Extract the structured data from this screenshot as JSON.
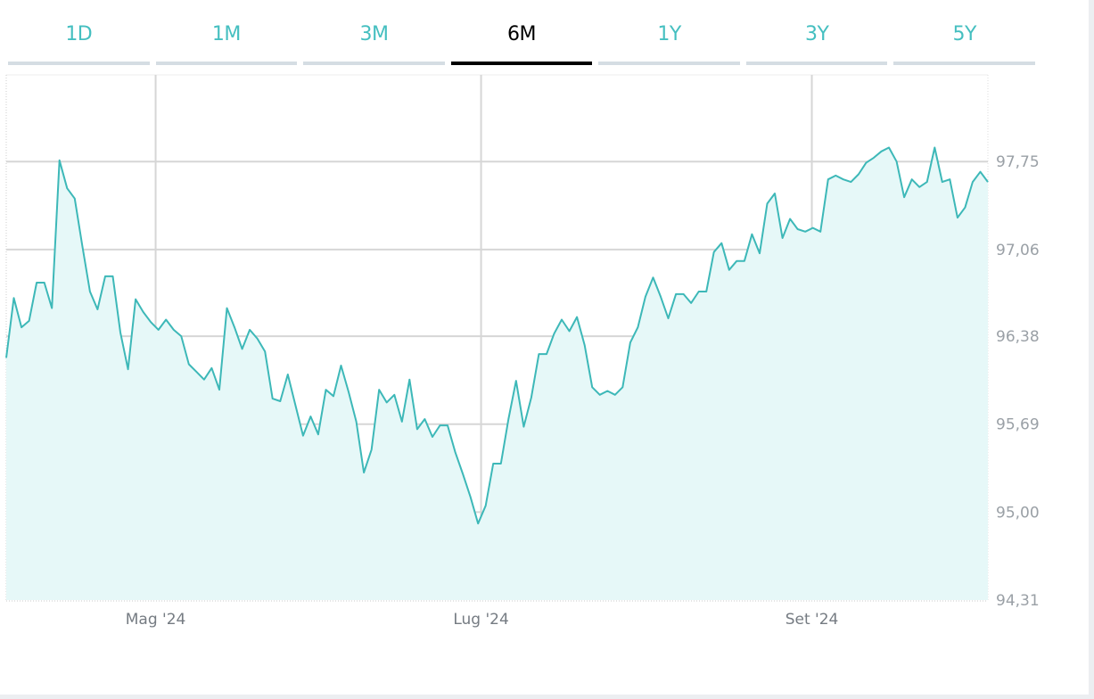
{
  "tabs": [
    {
      "label": "1D",
      "active": false
    },
    {
      "label": "1M",
      "active": false
    },
    {
      "label": "3M",
      "active": false
    },
    {
      "label": "6M",
      "active": true
    },
    {
      "label": "1Y",
      "active": false
    },
    {
      "label": "3Y",
      "active": false
    },
    {
      "label": "5Y",
      "active": false
    }
  ],
  "colors": {
    "line": "#3db8b8",
    "fill": "#e6f8f8",
    "accent": "#45bfc0",
    "grid": "#d6d6d6"
  },
  "chart_data": {
    "type": "area",
    "title": "",
    "xlabel": "",
    "ylabel": "",
    "xlim": [
      "2024-04-03",
      "2024-10-04"
    ],
    "ylim": [
      94.31,
      98.43
    ],
    "grid": true,
    "x_ticks": [
      {
        "date": "2024-05-01",
        "label": "Mag '24"
      },
      {
        "date": "2024-07-01",
        "label": "Lug '24"
      },
      {
        "date": "2024-09-01",
        "label": "Set '24"
      }
    ],
    "y_ticks": [
      {
        "value": 94.31,
        "label": "94,31"
      },
      {
        "value": 95.0,
        "label": "95,00"
      },
      {
        "value": 95.69,
        "label": "95,69"
      },
      {
        "value": 96.38,
        "label": "96,38"
      },
      {
        "value": 97.06,
        "label": "97,06"
      },
      {
        "value": 97.75,
        "label": "97,75"
      }
    ],
    "values": [
      96.21,
      96.68,
      96.45,
      96.5,
      96.8,
      96.8,
      96.6,
      97.76,
      97.54,
      97.46,
      97.09,
      96.73,
      96.59,
      96.85,
      96.85,
      96.41,
      96.12,
      96.67,
      96.57,
      96.49,
      96.43,
      96.51,
      96.43,
      96.38,
      96.16,
      96.1,
      96.04,
      96.13,
      95.96,
      96.6,
      96.45,
      96.28,
      96.43,
      96.36,
      96.26,
      95.89,
      95.87,
      96.08,
      95.84,
      95.6,
      95.75,
      95.61,
      95.96,
      95.91,
      96.15,
      95.94,
      95.71,
      95.31,
      95.49,
      95.96,
      95.86,
      95.92,
      95.71,
      96.04,
      95.65,
      95.73,
      95.59,
      95.68,
      95.68,
      95.47,
      95.3,
      95.12,
      94.91,
      95.05,
      95.38,
      95.38,
      95.73,
      96.03,
      95.67,
      95.9,
      96.24,
      96.24,
      96.4,
      96.51,
      96.42,
      96.53,
      96.31,
      95.98,
      95.92,
      95.95,
      95.92,
      95.98,
      96.33,
      96.45,
      96.69,
      96.84,
      96.69,
      96.52,
      96.71,
      96.71,
      96.64,
      96.73,
      96.73,
      97.04,
      97.11,
      96.9,
      96.97,
      96.97,
      97.18,
      97.03,
      97.42,
      97.5,
      97.15,
      97.3,
      97.22,
      97.2,
      97.23,
      97.2,
      97.61,
      97.64,
      97.61,
      97.59,
      97.65,
      97.74,
      97.78,
      97.83,
      97.86,
      97.75,
      97.47,
      97.61,
      97.55,
      97.59,
      97.86,
      97.59,
      97.61,
      97.31,
      97.39,
      97.59,
      97.67,
      97.59
    ]
  }
}
